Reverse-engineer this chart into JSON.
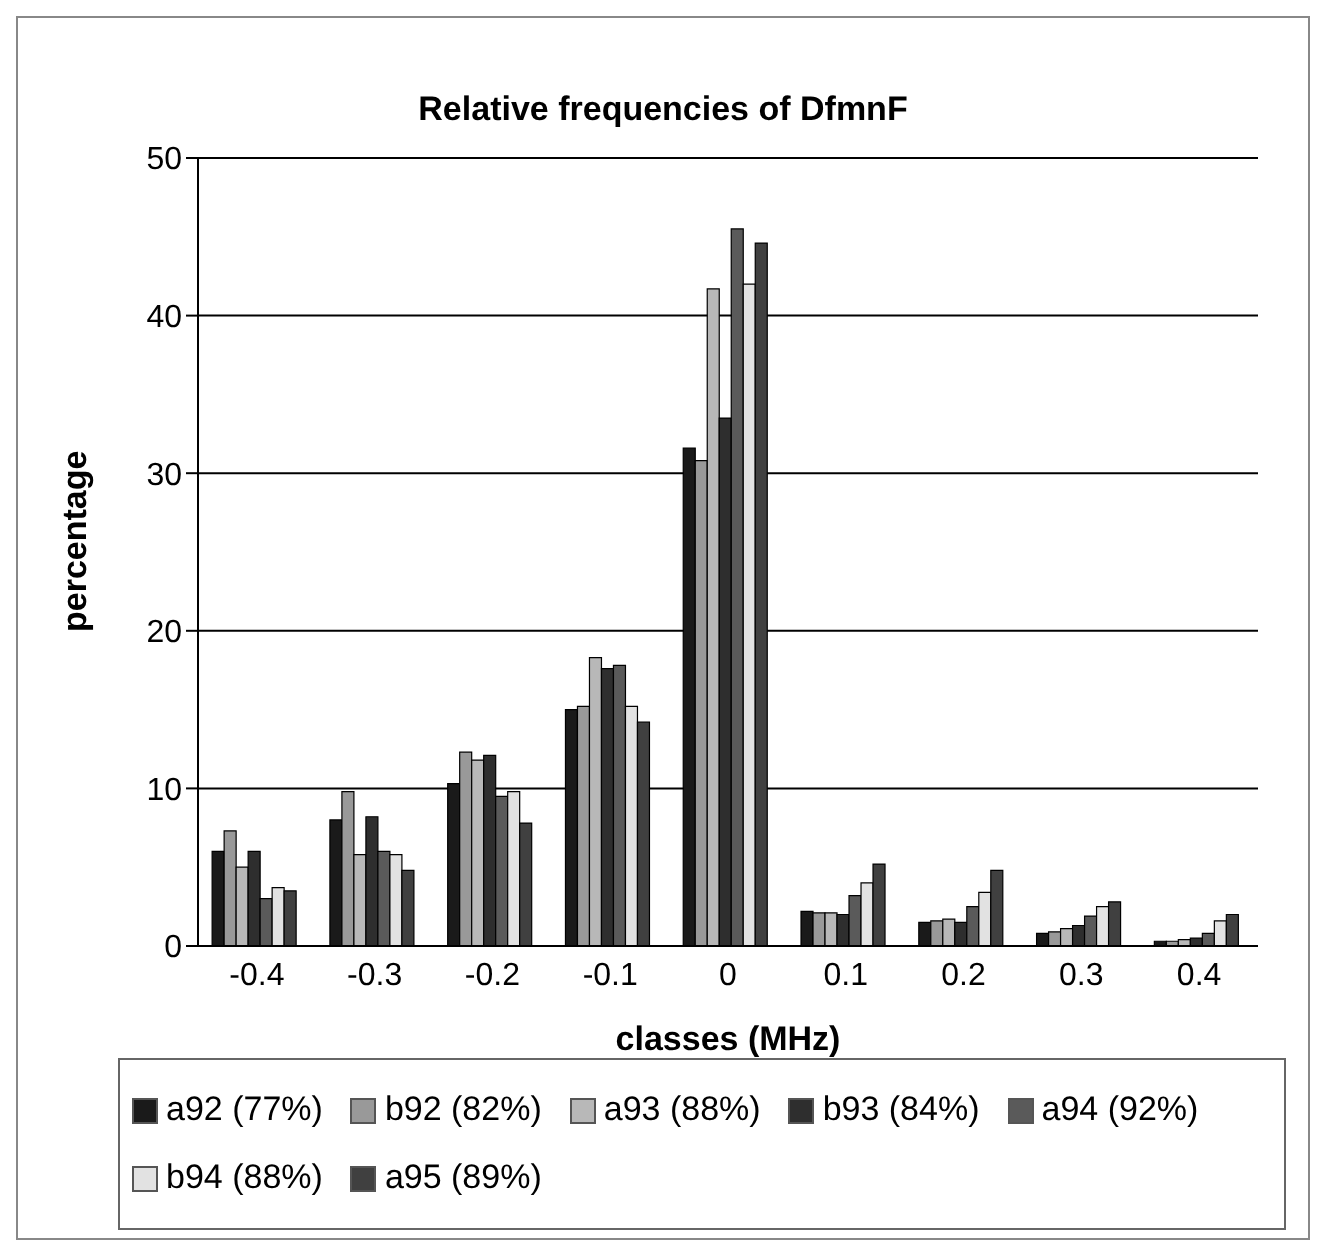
{
  "chart_data": {
    "type": "bar",
    "title": "Relative frequencies of DfmnF",
    "xlabel": "classes (MHz)",
    "ylabel": "percentage",
    "categories": [
      "-0.4",
      "-0.3",
      "-0.2",
      "-0.1",
      "0",
      "0.1",
      "0.2",
      "0.3",
      "0.4"
    ],
    "series": [
      {
        "name": "a92 (77%)",
        "color": "#1a1a1a",
        "values": [
          6,
          8,
          10.3,
          15,
          31.6,
          2.2,
          1.5,
          0.8,
          0.3
        ]
      },
      {
        "name": "b92 (82%)",
        "color": "#999999",
        "values": [
          7.3,
          9.8,
          12.3,
          15.2,
          30.8,
          2.1,
          1.6,
          0.9,
          0.3
        ]
      },
      {
        "name": "a93 (88%)",
        "color": "#b8b8b8",
        "values": [
          5,
          5.8,
          11.8,
          18.3,
          41.7,
          2.1,
          1.7,
          1.1,
          0.4
        ]
      },
      {
        "name": "b93 (84%)",
        "color": "#2e2e2e",
        "values": [
          6,
          8.2,
          12.1,
          17.6,
          33.5,
          2,
          1.5,
          1.3,
          0.5
        ]
      },
      {
        "name": "a94 (92%)",
        "color": "#5a5a5a",
        "values": [
          3,
          6,
          9.5,
          17.8,
          45.5,
          3.2,
          2.5,
          1.9,
          0.8
        ]
      },
      {
        "name": "b94 (88%)",
        "color": "#e2e2e2",
        "values": [
          3.7,
          5.8,
          9.8,
          15.2,
          42,
          4,
          3.4,
          2.5,
          1.6
        ]
      },
      {
        "name": "a95 (89%)",
        "color": "#404040",
        "values": [
          3.5,
          4.8,
          7.8,
          14.2,
          44.6,
          5.2,
          4.8,
          2.8,
          2
        ]
      }
    ],
    "ylim": [
      0,
      50
    ],
    "yticks": [
      0,
      10,
      20,
      30,
      40,
      50
    ],
    "grid": "y",
    "legend": "bottom"
  }
}
